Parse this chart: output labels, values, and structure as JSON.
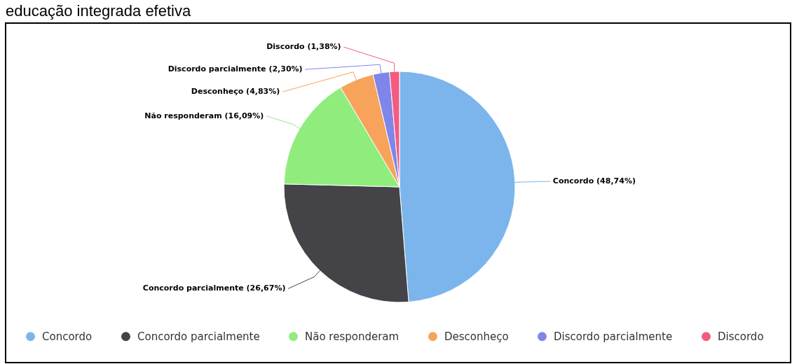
{
  "chart_data": {
    "type": "pie",
    "title": "educação integrada efetiva",
    "categories": [
      "Concordo",
      "Concordo parcialmente",
      "Não responderam",
      "Desconheço",
      "Discordo parcialmente",
      "Discordo"
    ],
    "values": [
      48.74,
      26.67,
      16.09,
      4.83,
      2.3,
      1.38
    ],
    "colors": [
      "#7cb5ec",
      "#434348",
      "#90ed7d",
      "#f7a35c",
      "#8085e9",
      "#f15c80"
    ],
    "value_labels": [
      "Concordo (48,74%)",
      "Concordo parcialmente (26,67%)",
      "Não responderam (16,09%)",
      "Desconheço (4,83%)",
      "Discordo parcialmente (2,30%)",
      "Discordo (1,38%)"
    ],
    "legend": "bottom"
  }
}
